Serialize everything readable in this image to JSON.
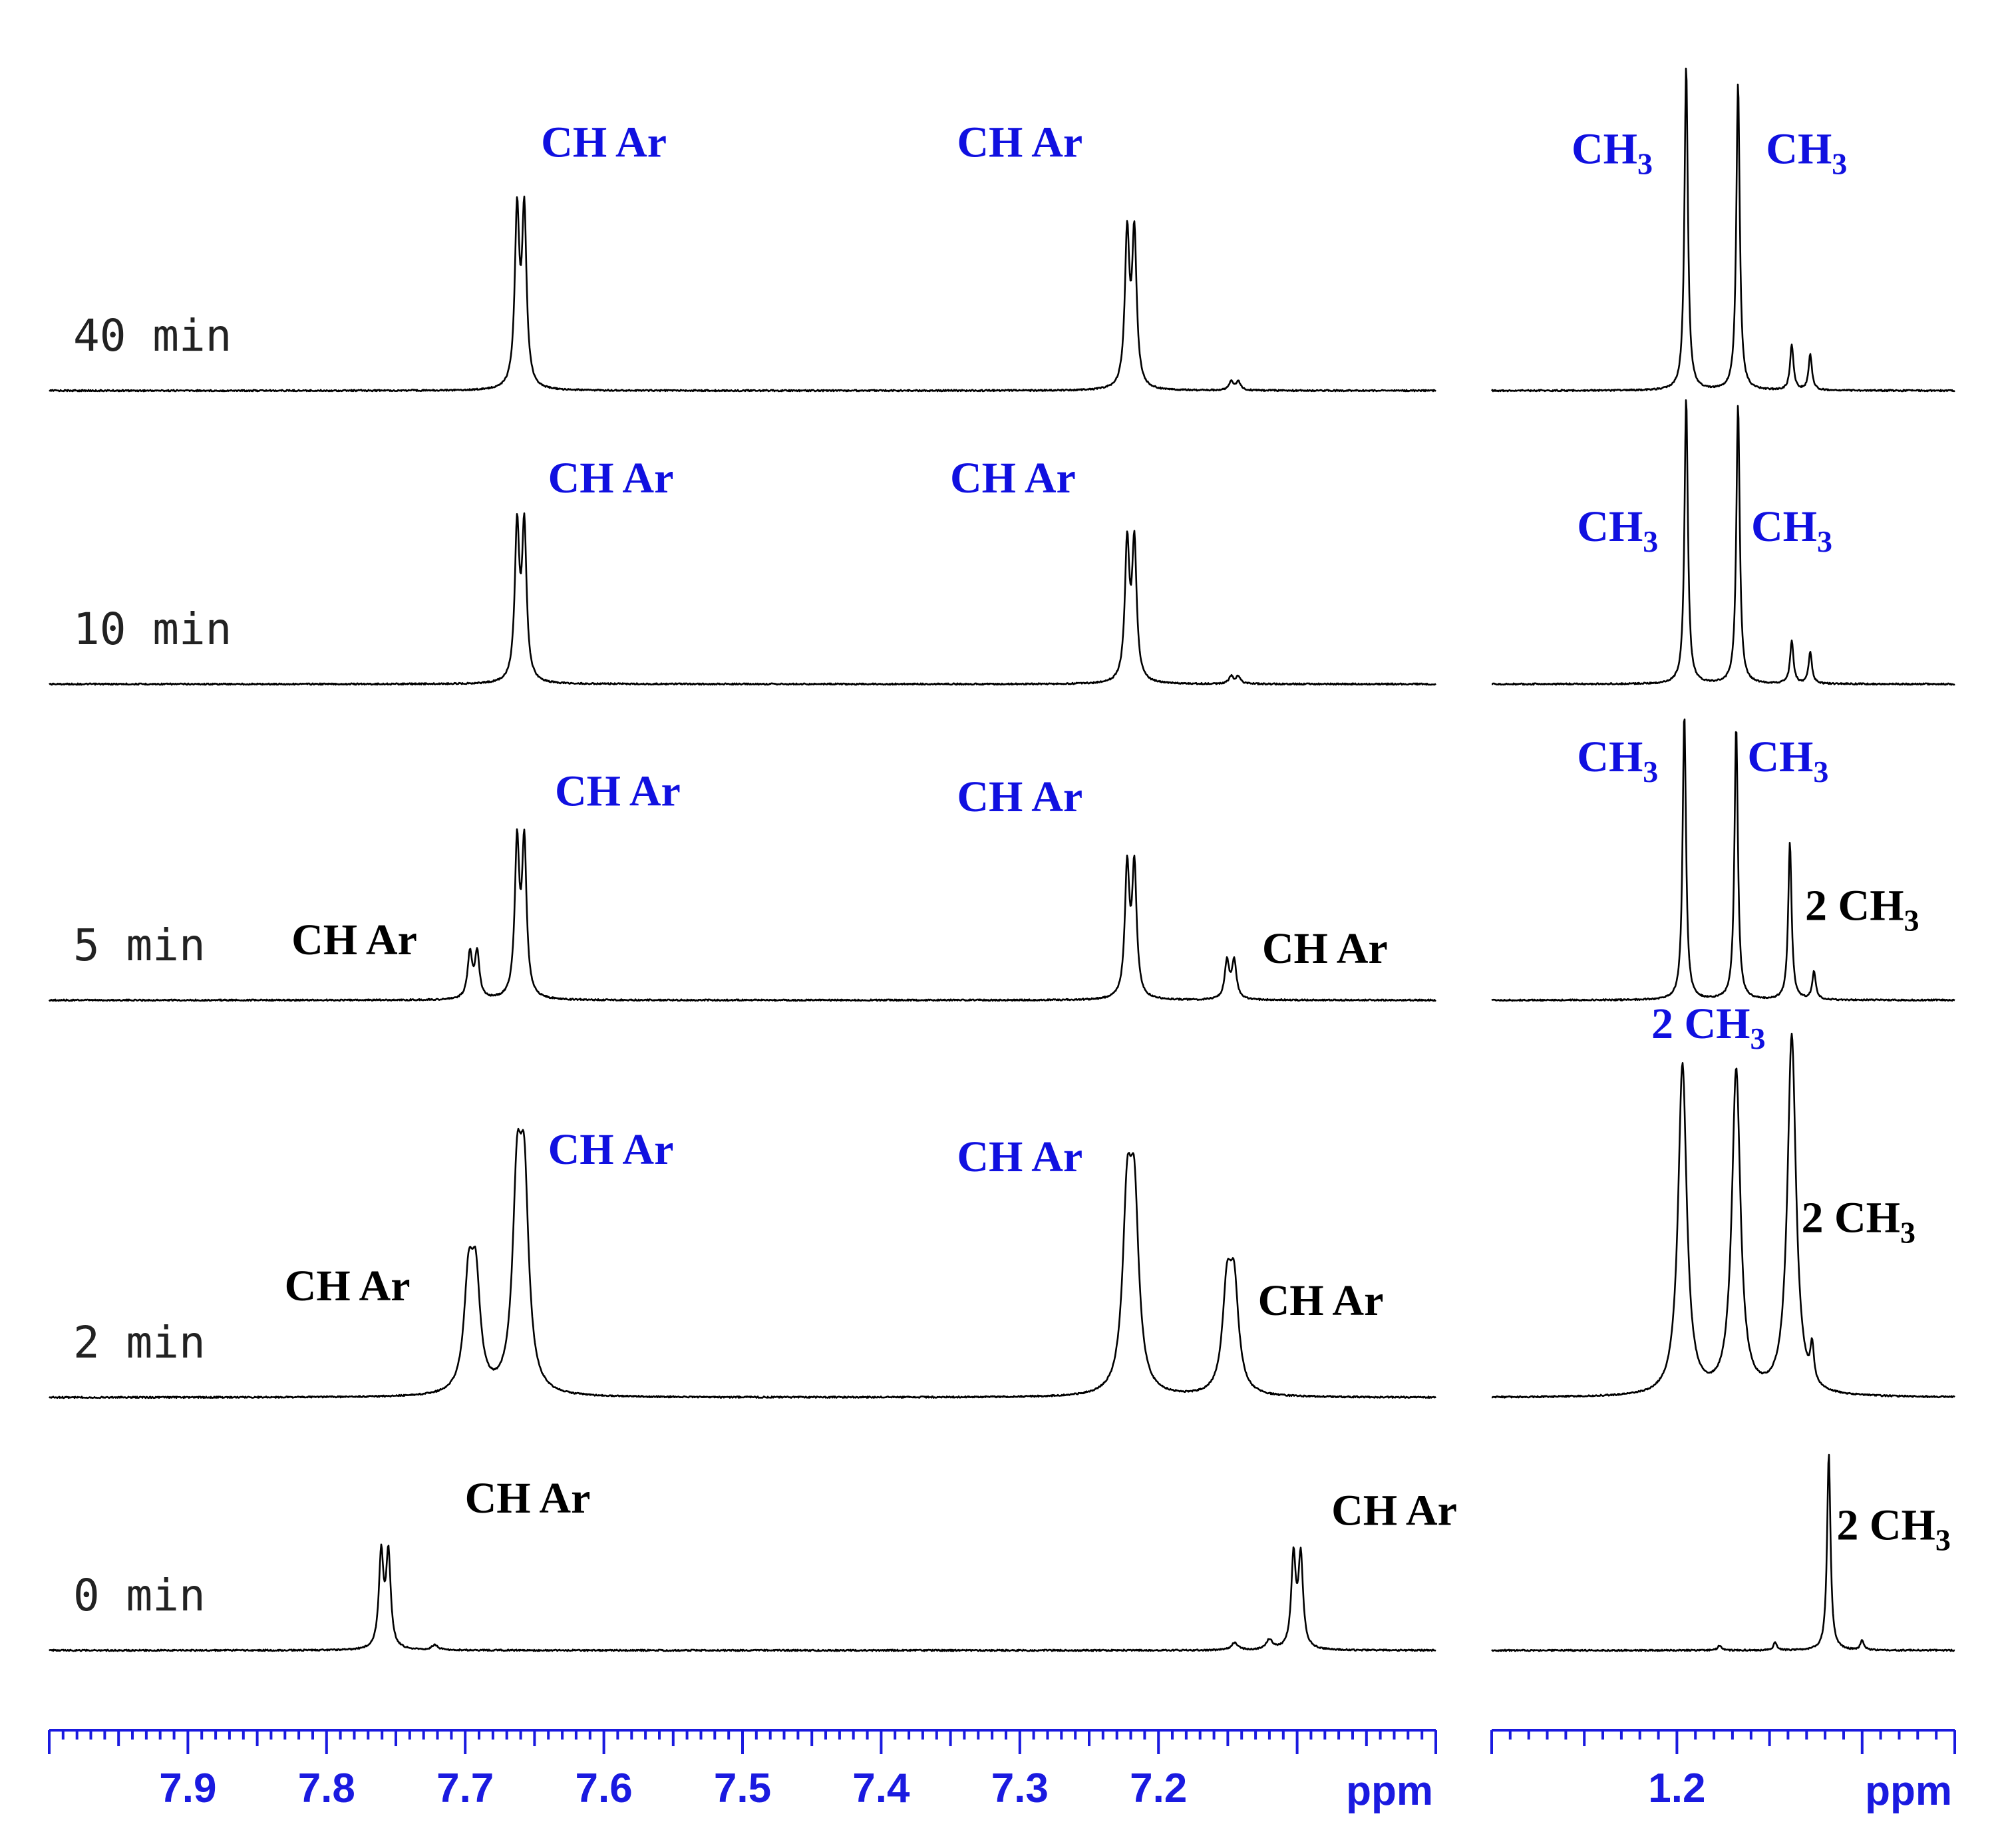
{
  "chart_data": {
    "type": "line",
    "x_unit_label": "ppm",
    "panels": [
      {
        "id": "aromatic",
        "xlim": [
          8.0,
          7.0
        ],
        "ticks": [
          7.9,
          7.8,
          7.7,
          7.6,
          7.5,
          7.4,
          7.3,
          7.2
        ]
      },
      {
        "id": "methyl",
        "xlim": [
          1.3,
          1.05
        ],
        "ticks": [
          1.2
        ]
      }
    ],
    "traces": [
      {
        "time": "40 min",
        "peaks": [
          {
            "panel": "aromatic",
            "ppm": 7.66,
            "height": 1.0,
            "doublet": true
          },
          {
            "panel": "aromatic",
            "ppm": 7.22,
            "height": 0.88,
            "doublet": true
          },
          {
            "panel": "aromatic",
            "ppm": 7.145,
            "height": 0.05,
            "doublet": true
          },
          {
            "panel": "methyl",
            "ppm": 1.195,
            "height": 1.0
          },
          {
            "panel": "methyl",
            "ppm": 1.167,
            "height": 0.95
          },
          {
            "panel": "methyl",
            "ppm": 1.138,
            "height": 0.14
          },
          {
            "panel": "methyl",
            "ppm": 1.128,
            "height": 0.11
          }
        ],
        "labels": [
          {
            "panel": "aromatic",
            "text": "CH Ar",
            "color": "blue",
            "ppm": 7.6,
            "row": 0.72
          },
          {
            "panel": "aromatic",
            "text": "CH Ar",
            "color": "blue",
            "ppm": 7.3,
            "row": 0.72
          },
          {
            "panel": "methyl",
            "text": "CH",
            "sub": "3",
            "color": "blue",
            "ppm": 1.235,
            "row": 0.7
          },
          {
            "panel": "methyl",
            "text": "CH",
            "sub": "3",
            "color": "blue",
            "ppm": 1.13,
            "row": 0.7
          }
        ]
      },
      {
        "time": "10 min",
        "peaks": [
          {
            "panel": "aromatic",
            "ppm": 7.66,
            "height": 1.0,
            "doublet": true
          },
          {
            "panel": "aromatic",
            "ppm": 7.22,
            "height": 0.9,
            "doublet": true
          },
          {
            "panel": "aromatic",
            "ppm": 7.145,
            "height": 0.05,
            "doublet": true
          },
          {
            "panel": "methyl",
            "ppm": 1.195,
            "height": 1.0
          },
          {
            "panel": "methyl",
            "ppm": 1.167,
            "height": 0.98
          },
          {
            "panel": "methyl",
            "ppm": 1.138,
            "height": 0.15
          },
          {
            "panel": "methyl",
            "ppm": 1.128,
            "height": 0.11
          }
        ],
        "labels": [
          {
            "panel": "aromatic",
            "text": "CH Ar",
            "color": "blue",
            "ppm": 7.595,
            "row": 0.67
          },
          {
            "panel": "aromatic",
            "text": "CH Ar",
            "color": "blue",
            "ppm": 7.305,
            "row": 0.67
          },
          {
            "panel": "methyl",
            "text": "CH",
            "sub": "3",
            "color": "blue",
            "ppm": 1.232,
            "row": 0.5
          },
          {
            "panel": "methyl",
            "text": "CH",
            "sub": "3",
            "color": "blue",
            "ppm": 1.138,
            "row": 0.5
          }
        ]
      },
      {
        "time": "5 min",
        "peaks": [
          {
            "panel": "aromatic",
            "ppm": 7.694,
            "height": 0.3,
            "doublet": true
          },
          {
            "panel": "aromatic",
            "ppm": 7.66,
            "height": 1.0,
            "doublet": true
          },
          {
            "panel": "aromatic",
            "ppm": 7.22,
            "height": 0.85,
            "doublet": true
          },
          {
            "panel": "aromatic",
            "ppm": 7.148,
            "height": 0.25,
            "doublet": true
          },
          {
            "panel": "methyl",
            "ppm": 1.196,
            "height": 1.0
          },
          {
            "panel": "methyl",
            "ppm": 1.168,
            "height": 0.96
          },
          {
            "panel": "methyl",
            "ppm": 1.139,
            "height": 0.55
          },
          {
            "panel": "methyl",
            "ppm": 1.126,
            "height": 0.1
          }
        ],
        "labels": [
          {
            "panel": "aromatic",
            "text": "CH Ar",
            "color": "black",
            "ppm": 7.78,
            "row": 0.16
          },
          {
            "panel": "aromatic",
            "text": "CH Ar",
            "color": "blue",
            "ppm": 7.59,
            "row": 0.68
          },
          {
            "panel": "aromatic",
            "text": "CH Ar",
            "color": "blue",
            "ppm": 7.3,
            "row": 0.66
          },
          {
            "panel": "aromatic",
            "text": "CH Ar",
            "color": "black",
            "ppm": 7.08,
            "row": 0.13
          },
          {
            "panel": "methyl",
            "text": "CH",
            "sub": "3",
            "color": "blue",
            "ppm": 1.232,
            "row": 0.8
          },
          {
            "panel": "methyl",
            "text": "CH",
            "sub": "3",
            "color": "blue",
            "ppm": 1.14,
            "row": 0.8
          },
          {
            "panel": "methyl",
            "text": "2 CH",
            "sub": "3",
            "color": "black",
            "ppm": 1.1,
            "row": 0.28
          }
        ]
      },
      {
        "time": "2 min",
        "peaks": [
          {
            "panel": "aromatic",
            "ppm": 7.695,
            "height": 0.55,
            "doublet": true,
            "broad": true
          },
          {
            "panel": "aromatic",
            "ppm": 7.66,
            "height": 1.0,
            "doublet": true,
            "broad": true
          },
          {
            "panel": "aromatic",
            "ppm": 7.22,
            "height": 0.92,
            "doublet": true,
            "broad": true
          },
          {
            "panel": "aromatic",
            "ppm": 7.148,
            "height": 0.52,
            "doublet": true,
            "broad": true
          },
          {
            "panel": "methyl",
            "ppm": 1.197,
            "height": 0.92,
            "broad": true
          },
          {
            "panel": "methyl",
            "ppm": 1.168,
            "height": 0.9,
            "broad": true
          },
          {
            "panel": "methyl",
            "ppm": 1.138,
            "height": 1.0,
            "broad": true
          },
          {
            "panel": "methyl",
            "ppm": 1.127,
            "height": 0.1
          }
        ],
        "labels": [
          {
            "panel": "aromatic",
            "text": "CH Ar",
            "color": "black",
            "ppm": 7.785,
            "row": 0.27
          },
          {
            "panel": "aromatic",
            "text": "CH Ar",
            "color": "blue",
            "ppm": 7.595,
            "row": 0.65
          },
          {
            "panel": "aromatic",
            "text": "CH Ar",
            "color": "blue",
            "ppm": 7.3,
            "row": 0.63
          },
          {
            "panel": "aromatic",
            "text": "CH Ar",
            "color": "black",
            "ppm": 7.083,
            "row": 0.23
          },
          {
            "panel": "methyl",
            "text": "2 CH",
            "sub": "3",
            "color": "blue",
            "ppm": 1.183,
            "row": 1.0
          },
          {
            "panel": "methyl",
            "text": "2 CH",
            "sub": "3",
            "color": "black",
            "ppm": 1.102,
            "row": 0.46
          }
        ]
      },
      {
        "time": "0 min",
        "peaks": [
          {
            "panel": "aromatic",
            "ppm": 7.758,
            "height": 0.72,
            "doublet": true
          },
          {
            "panel": "aromatic",
            "ppm": 7.722,
            "height": 0.02,
            "doublet": false
          },
          {
            "panel": "aromatic",
            "ppm": 7.145,
            "height": 0.03,
            "doublet": false
          },
          {
            "panel": "aromatic",
            "ppm": 7.12,
            "height": 0.04,
            "doublet": false
          },
          {
            "panel": "aromatic",
            "ppm": 7.1,
            "height": 0.7,
            "doublet": true
          },
          {
            "panel": "methyl",
            "ppm": 1.177,
            "height": 0.02
          },
          {
            "panel": "methyl",
            "ppm": 1.147,
            "height": 0.03
          },
          {
            "panel": "methyl",
            "ppm": 1.118,
            "height": 0.8
          },
          {
            "panel": "methyl",
            "ppm": 1.1,
            "height": 0.04
          }
        ],
        "labels": [
          {
            "panel": "aromatic",
            "text": "CH Ar",
            "color": "black",
            "ppm": 7.655,
            "row": 0.56
          },
          {
            "panel": "aromatic",
            "text": "CH Ar",
            "color": "black",
            "ppm": 7.03,
            "row": 0.51
          },
          {
            "panel": "methyl",
            "text": "2 CH",
            "sub": "3",
            "color": "black",
            "ppm": 1.083,
            "row": 0.45
          }
        ]
      }
    ]
  },
  "colors": {
    "trace": "#000000",
    "axis": "#1a1ae0",
    "label_blue": "#1010e0",
    "label_black": "#000000"
  }
}
